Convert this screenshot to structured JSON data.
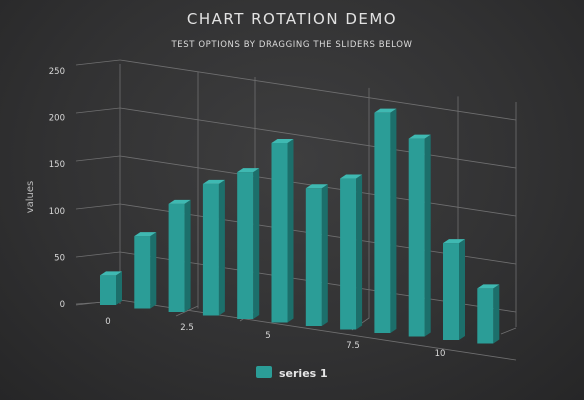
{
  "colors": {
    "background": "#323233",
    "bar_front": "#2b9d97",
    "bar_side": "#1c6f6b",
    "bar_top": "#3fb9b2",
    "grid": "#6f6f70",
    "text": "#e0e0e0"
  },
  "chart_data": {
    "type": "bar",
    "title": "CHART ROTATION DEMO",
    "subtitle": "TEST OPTIONS BY DRAGGING THE SLIDERS BELOW",
    "ylabel": "values",
    "xlabel": "",
    "ylim": [
      0,
      250
    ],
    "yticks": [
      0,
      50,
      100,
      150,
      200,
      250
    ],
    "xticks": [
      0,
      2.5,
      5,
      7.5,
      10
    ],
    "x": [
      0,
      1,
      2,
      3,
      4,
      5,
      6,
      7,
      8,
      9,
      10,
      11
    ],
    "series": [
      {
        "name": "series 1",
        "values": [
          29,
          71,
          106,
          129,
          144,
          176,
          135,
          148,
          216,
          194,
          95,
          54
        ]
      }
    ],
    "projection": "3d",
    "grid": true,
    "legend": "bottom-center"
  }
}
